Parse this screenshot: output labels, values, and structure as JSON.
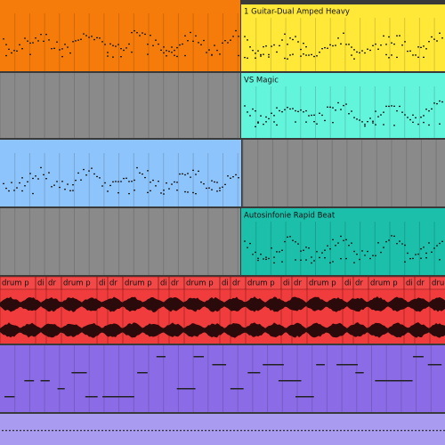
{
  "clips": [
    {
      "name": "1 Guitar-Dual Amped Heavy"
    },
    {
      "name": "VS Magic"
    },
    {
      "name": "Autosinfonie Rapid Beat"
    }
  ],
  "drum_clips": [
    "drum p",
    "di",
    "dr",
    "drum p",
    "di",
    "dr",
    "drum p",
    "di",
    "dr",
    "drum p",
    "di",
    "dr",
    "drum p",
    "di",
    "dr",
    "drum p",
    "di",
    "dr",
    "drum p",
    "di",
    "dr",
    "drum p"
  ]
}
